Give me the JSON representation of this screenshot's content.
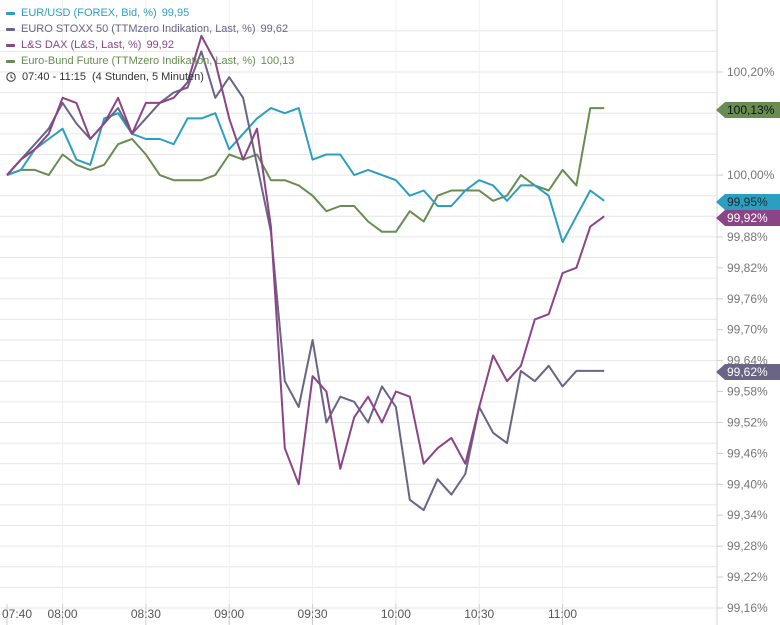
{
  "legend": {
    "items": [
      {
        "label": "EUR/USD (FOREX, Bid, %)",
        "value": "99,95",
        "color": "#2b9fc1"
      },
      {
        "label": "EURO STOXX 50 (TTMzero Indikation, Last, %)",
        "value": "99,62",
        "color": "#6a6485"
      },
      {
        "label": "L&S DAX (L&S, Last, %)",
        "value": "99,92",
        "color": "#8b4486"
      },
      {
        "label": "Euro-Bund Future (TTMzero Indikation, Last, %)",
        "value": "100,13",
        "color": "#688c52"
      }
    ],
    "time_range": "07:40 - 11:15",
    "duration": "(4 Stunden, 5 Minuten)",
    "clock_icon": "clock-icon"
  },
  "chart_data": {
    "type": "line",
    "ylim": [
      99.16,
      100.28
    ],
    "y_ticks": [
      "100,20%",
      "100,00%",
      "99,88%",
      "99,82%",
      "99,76%",
      "99,70%",
      "99,64%",
      "99,58%",
      "99,52%",
      "99,46%",
      "99,40%",
      "99,34%",
      "99,28%",
      "99,22%",
      "99,16%"
    ],
    "x_ticks": [
      "07:40",
      "08:00",
      "08:30",
      "09:00",
      "09:30",
      "10:00",
      "10:30",
      "11:00"
    ],
    "grid": true,
    "legend_position": "top-left",
    "last_value_labels": [
      "100,13%",
      "99,95%",
      "99,92%",
      "99,62%"
    ],
    "x": [
      "07:40",
      "07:45",
      "07:50",
      "07:55",
      "08:00",
      "08:05",
      "08:10",
      "08:15",
      "08:20",
      "08:25",
      "08:30",
      "08:35",
      "08:40",
      "08:45",
      "08:50",
      "08:55",
      "09:00",
      "09:05",
      "09:10",
      "09:15",
      "09:20",
      "09:25",
      "09:30",
      "09:35",
      "09:40",
      "09:45",
      "09:50",
      "09:55",
      "10:00",
      "10:05",
      "10:10",
      "10:15",
      "10:20",
      "10:25",
      "10:30",
      "10:35",
      "10:40",
      "10:45",
      "10:50",
      "10:55",
      "11:00",
      "11:05",
      "11:10",
      "11:15"
    ],
    "series": [
      {
        "name": "EUR/USD (FOREX, Bid, %)",
        "color": "#2b9fc1",
        "last": "99,95%",
        "values": [
          100.0,
          100.01,
          100.05,
          100.07,
          100.09,
          100.03,
          100.02,
          100.11,
          100.12,
          100.08,
          100.07,
          100.07,
          100.06,
          100.11,
          100.11,
          100.12,
          100.05,
          100.08,
          100.11,
          100.13,
          100.12,
          100.13,
          100.03,
          100.04,
          100.04,
          100.0,
          100.01,
          100.0,
          99.99,
          99.96,
          99.97,
          99.94,
          99.94,
          99.97,
          99.99,
          99.98,
          99.95,
          99.98,
          99.98,
          99.96,
          99.87,
          99.92,
          99.97,
          99.95
        ]
      },
      {
        "name": "EURO STOXX 50 (TTMzero Indikation, Last, %)",
        "color": "#6a6485",
        "last": "99,62%",
        "values": [
          100.0,
          100.03,
          100.06,
          100.09,
          100.14,
          100.1,
          100.07,
          100.1,
          100.13,
          100.08,
          100.11,
          100.14,
          100.16,
          100.17,
          100.24,
          100.15,
          100.19,
          100.15,
          100.02,
          99.89,
          99.6,
          99.55,
          99.68,
          99.52,
          99.57,
          99.56,
          99.52,
          99.59,
          99.55,
          99.37,
          99.35,
          99.41,
          99.38,
          99.42,
          99.55,
          99.5,
          99.48,
          99.62,
          99.6,
          99.63,
          99.59,
          99.62,
          99.62,
          99.62
        ]
      },
      {
        "name": "L&S DAX (L&S, Last, %)",
        "color": "#8b4486",
        "last": "99,92%",
        "values": [
          100.0,
          100.03,
          100.05,
          100.08,
          100.15,
          100.14,
          100.07,
          100.1,
          100.15,
          100.08,
          100.14,
          100.14,
          100.15,
          100.18,
          100.27,
          100.22,
          100.11,
          100.03,
          100.09,
          99.9,
          99.47,
          99.4,
          99.61,
          99.58,
          99.43,
          99.53,
          99.57,
          99.52,
          99.58,
          99.57,
          99.44,
          99.47,
          99.49,
          99.44,
          99.55,
          99.65,
          99.6,
          99.63,
          99.72,
          99.73,
          99.81,
          99.82,
          99.9,
          99.92
        ]
      },
      {
        "name": "Euro-Bund Future (TTMzero Indikation, Last, %)",
        "color": "#688c52",
        "last": "100,13%",
        "values": [
          100.0,
          100.01,
          100.01,
          100.0,
          100.04,
          100.02,
          100.01,
          100.02,
          100.06,
          100.07,
          100.04,
          100.0,
          99.99,
          99.99,
          99.99,
          100.0,
          100.04,
          100.03,
          100.04,
          99.99,
          99.99,
          99.98,
          99.96,
          99.93,
          99.94,
          99.94,
          99.91,
          99.89,
          99.89,
          99.93,
          99.91,
          99.96,
          99.97,
          99.97,
          99.97,
          99.95,
          99.96,
          100.0,
          99.98,
          99.97,
          100.01,
          99.98,
          100.13,
          100.13
        ]
      }
    ]
  }
}
